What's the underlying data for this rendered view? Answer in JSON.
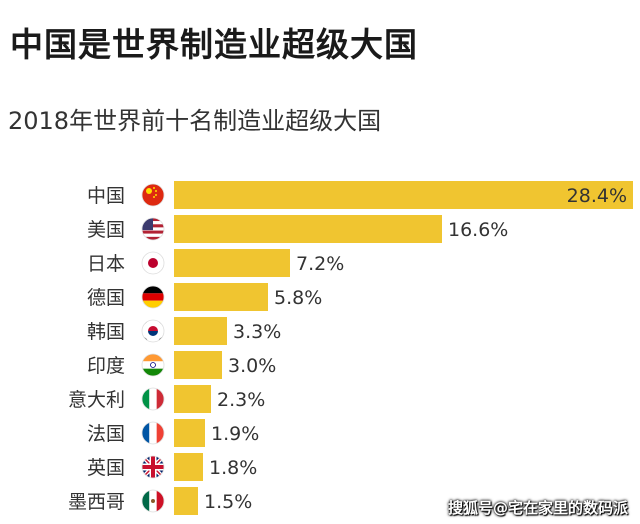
{
  "title": "中国是世界制造业超级大国",
  "subtitle": "2018年世界前十名制造业超级大国",
  "watermark": "搜狐号@宅在家里的数码派",
  "colors": {
    "bar": "#f0c530",
    "text": "#333333"
  },
  "chart_data": {
    "type": "bar",
    "orientation": "horizontal",
    "unit": "%",
    "categories": [
      "中国",
      "美国",
      "日本",
      "德国",
      "韩国",
      "印度",
      "意大利",
      "法国",
      "英国",
      "墨西哥"
    ],
    "flags": [
      "china-flag-icon",
      "usa-flag-icon",
      "japan-flag-icon",
      "germany-flag-icon",
      "south-korea-flag-icon",
      "india-flag-icon",
      "italy-flag-icon",
      "france-flag-icon",
      "uk-flag-icon",
      "mexico-flag-icon"
    ],
    "values": [
      28.4,
      16.6,
      7.2,
      5.8,
      3.3,
      3.0,
      2.3,
      1.9,
      1.8,
      1.5
    ],
    "labels": [
      "28.4%",
      "16.6%",
      "7.2%",
      "5.8%",
      "3.3%",
      "3.0%",
      "2.3%",
      "1.9%",
      "1.8%",
      "1.5%"
    ],
    "grid": false,
    "legend": false
  }
}
